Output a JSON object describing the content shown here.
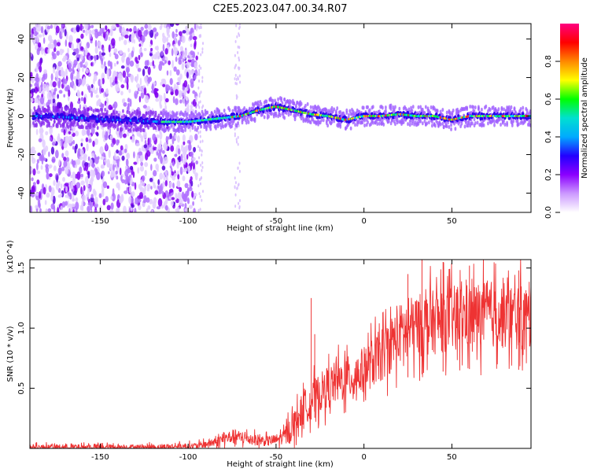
{
  "figure": {
    "title": "C2E5.2023.047.00.34.R07"
  },
  "chart_data": [
    {
      "type": "heatmap",
      "title": "C2E5.2023.047.00.34.R07",
      "xlabel": "Height of straight line (km)",
      "ylabel": "Frequency (Hz)",
      "xlim": [
        -190,
        95
      ],
      "ylim": [
        -50,
        48
      ],
      "x_ticks": [
        -150,
        -100,
        -50,
        0,
        50
      ],
      "y_ticks": [
        -40,
        -20,
        0,
        20,
        40
      ],
      "colorbar": {
        "label": "Normalized spectral amplitude",
        "range": [
          0,
          1
        ],
        "ticks": [
          "0.0",
          "0.2",
          "0.4",
          "0.6",
          "0.8"
        ],
        "colors": [
          "#ffffff",
          "#cc99ff",
          "#8b00ff",
          "#2200ff",
          "#00aaff",
          "#00e0d0",
          "#00ff00",
          "#ffff00",
          "#ff8800",
          "#ff0000",
          "#ff0080"
        ]
      },
      "ridge": {
        "x": [
          -185,
          -160,
          -140,
          -115,
          -100,
          -90,
          -80,
          -70,
          -60,
          -55,
          -50,
          -45,
          -40,
          -30,
          -20,
          -10,
          0,
          10,
          20,
          30,
          40,
          50,
          60,
          70,
          80,
          95
        ],
        "frequency": [
          0,
          -1,
          -2,
          -3,
          -3,
          -2,
          -1,
          0,
          3,
          4,
          5,
          4,
          3,
          1,
          0,
          -2,
          0,
          0,
          1,
          0,
          0,
          -2,
          0,
          0,
          0,
          0
        ]
      },
      "noise_region_x": [
        -190,
        -100
      ]
    },
    {
      "type": "line",
      "xlabel": "Height of straight line (km)",
      "ylabel": "SNR (10 * v/v)",
      "y_multiplier": "(x10^4)",
      "xlim": [
        -190,
        95
      ],
      "ylim": [
        0,
        1.57
      ],
      "x_ticks": [
        -150,
        -100,
        -50,
        0,
        50
      ],
      "y_ticks": [
        0.5,
        1.0,
        1.5
      ],
      "color": "#ee3333",
      "envelope": {
        "x": [
          -190,
          -120,
          -95,
          -85,
          -75,
          -65,
          -55,
          -50,
          -45,
          -40,
          -35,
          -30,
          -25,
          -20,
          -15,
          -10,
          -5,
          0,
          10,
          20,
          30,
          40,
          50,
          60,
          70,
          80,
          95
        ],
        "mean": [
          0.01,
          0.01,
          0.02,
          0.05,
          0.1,
          0.08,
          0.06,
          0.07,
          0.1,
          0.2,
          0.32,
          0.4,
          0.46,
          0.52,
          0.55,
          0.58,
          0.6,
          0.65,
          0.78,
          0.95,
          1.02,
          1.05,
          1.08,
          1.1,
          1.12,
          1.1,
          1.08
        ]
      },
      "peaks": [
        {
          "x": -30,
          "y": 1.25
        },
        {
          "x": -28,
          "y": 0.95
        },
        {
          "x": 25,
          "y": 1.45
        },
        {
          "x": 33,
          "y": 1.57
        },
        {
          "x": 45,
          "y": 1.55
        },
        {
          "x": 60,
          "y": 1.52
        },
        {
          "x": 88,
          "y": 1.48
        }
      ]
    }
  ]
}
